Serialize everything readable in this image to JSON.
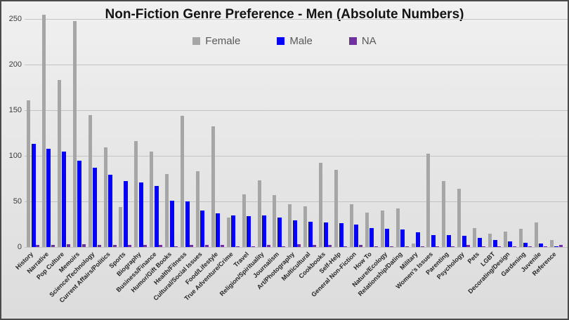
{
  "chart": {
    "title": "Non-Fiction Genre Preference - Men (Absolute Numbers)"
  },
  "palette": {
    "frame_border": "#4A4A4A",
    "background_top": "#F0F0F0",
    "background_bottom": "#DCDCDC",
    "gridline": "#C3C3C3",
    "title_text": "#141414",
    "legend_text": "#595959",
    "axis_text": "#262626",
    "female": "#A6A6A6",
    "male": "#0502F5",
    "na": "#7030A0"
  },
  "chart_data": {
    "type": "bar",
    "title": "Non-Fiction Genre Preference - Men (Absolute Numbers)",
    "xlabel": "",
    "ylabel": "",
    "ylim": [
      0,
      250
    ],
    "yticks": [
      0,
      50,
      100,
      150,
      200,
      250
    ],
    "grid": true,
    "legend_position": "top",
    "categories": [
      "History",
      "Narrative",
      "Pop Culture",
      "Memoirs",
      "Science/Technology",
      "Current Affairs/Politics",
      "Sports",
      "Biography",
      "Business/Finance",
      "Humor/Gift Books",
      "Health/Fitness",
      "Cultural/Social Issues",
      "Food/Lifestyle",
      "True Adventure/Crime",
      "Travel",
      "Religion/Spirituality",
      "Journalism",
      "Art/Photography",
      "Multicultural",
      "Cookbooks",
      "Self-Help",
      "General Non-Fiction",
      "How To",
      "Nature/Ecology",
      "Relationship/Dating",
      "Military",
      "Women's Issues",
      "Parenting",
      "Psychology",
      "Pets",
      "LGBT",
      "Decorating/Design",
      "Gardening",
      "Juvenile",
      "Reference"
    ],
    "series": [
      {
        "name": "Female",
        "color": "#A6A6A6",
        "values": [
          161,
          255,
          183,
          248,
          145,
          109,
          44,
          116,
          105,
          80,
          144,
          83,
          132,
          32,
          58,
          73,
          57,
          47,
          45,
          92,
          85,
          47,
          38,
          40,
          42,
          4,
          102,
          72,
          64,
          21,
          15,
          17,
          20,
          27,
          8
        ]
      },
      {
        "name": "Male",
        "color": "#0502F5",
        "values": [
          113,
          108,
          105,
          95,
          87,
          79,
          72,
          71,
          67,
          51,
          50,
          40,
          37,
          35,
          34,
          35,
          32,
          29,
          28,
          27,
          26,
          25,
          21,
          20,
          19,
          16,
          13,
          13,
          12,
          10,
          8,
          6,
          5,
          4,
          1
        ]
      },
      {
        "name": "NA",
        "color": "#7030A0",
        "values": [
          2,
          2,
          3,
          3,
          2,
          2,
          2,
          2,
          2,
          1,
          2,
          2,
          2,
          1,
          1,
          2,
          1,
          3,
          2,
          2,
          1,
          2,
          1,
          1,
          1,
          1,
          1,
          1,
          2,
          1,
          1,
          1,
          1,
          1,
          2
        ]
      }
    ]
  }
}
